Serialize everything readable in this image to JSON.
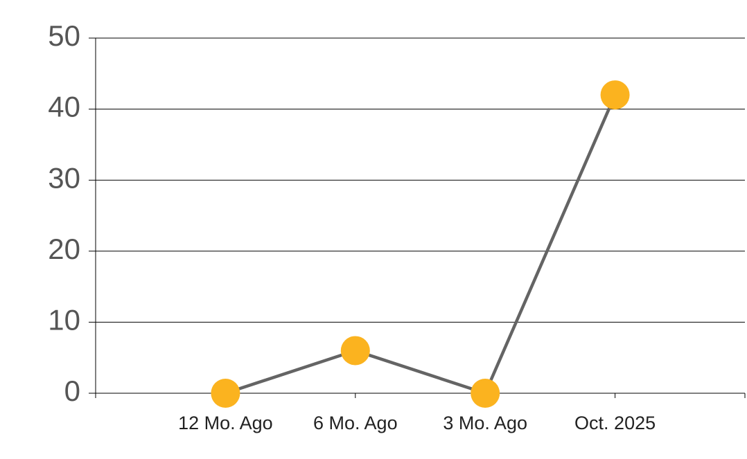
{
  "chart_data": {
    "type": "line",
    "categories": [
      null,
      "12 Mo. Ago",
      "6 Mo. Ago",
      "3 Mo. Ago",
      "Oct. 2025",
      null
    ],
    "series": [
      {
        "values": [
          null,
          0,
          6,
          0,
          42,
          null
        ],
        "color": "#646464",
        "marker_color": "#fbb31f"
      }
    ],
    "ylim": [
      0,
      50
    ],
    "yticks": [
      0,
      10,
      20,
      30,
      40,
      50
    ],
    "grid": true
  }
}
